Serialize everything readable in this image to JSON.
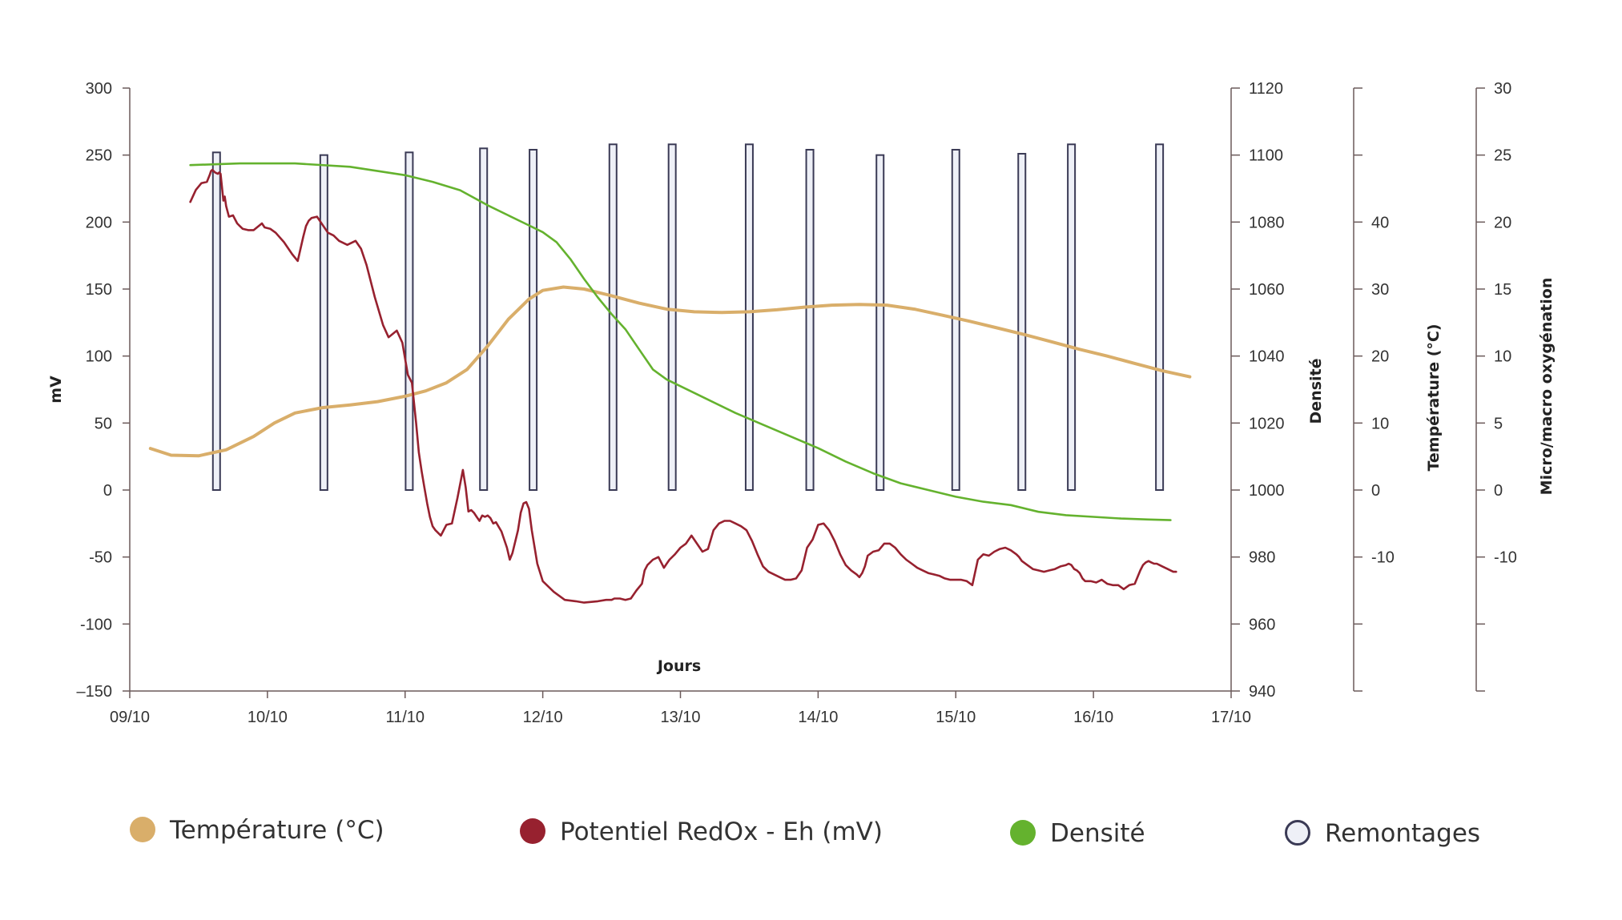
{
  "chart_data": {
    "type": "line",
    "title": "",
    "xlabel": "Jours",
    "x_ticks": [
      "09/10",
      "10/10",
      "11/10",
      "12/10",
      "13/10",
      "14/10",
      "15/10",
      "16/10",
      "17/10"
    ],
    "x_range": [
      0,
      8
    ],
    "axes": {
      "left": {
        "label": "mV",
        "ylim": [
          -150,
          300
        ],
        "ticks": [
          "300",
          "250",
          "200",
          "150",
          "100",
          "50",
          "0",
          "-50",
          "-100",
          "–150"
        ]
      },
      "right1": {
        "label": "Densité",
        "ylim": [
          940,
          1120
        ],
        "ticks": [
          "1120",
          "1100",
          "1080",
          "1060",
          "1040",
          "1020",
          "1000",
          "980",
          "960",
          "940"
        ]
      },
      "right2": {
        "label": "Température (°C)",
        "ylim": [
          -30,
          60
        ],
        "ticks": [
          "40",
          "30",
          "20",
          "10",
          "0",
          "-10"
        ]
      },
      "right3": {
        "label": "Micro/macro oxygénation",
        "ylim": [
          -15,
          30
        ],
        "ticks": [
          "30",
          "25",
          "20",
          "15",
          "10",
          "5",
          "0",
          "-10"
        ]
      }
    },
    "colors": {
      "temperature": "#D9AE6A",
      "redox": "#97212F",
      "densite": "#64B22E",
      "remontages": "#3A3A55",
      "remontages_fill": "#EEF0F7",
      "axis": "#6B5A5A"
    },
    "series": [
      {
        "name": "Température (°C)",
        "axis": "right2",
        "x": [
          0.15,
          0.3,
          0.5,
          0.7,
          0.9,
          1.05,
          1.2,
          1.4,
          1.6,
          1.8,
          2.0,
          2.15,
          2.3,
          2.45,
          2.6,
          2.75,
          2.9,
          3.0,
          3.15,
          3.3,
          3.5,
          3.7,
          3.9,
          4.1,
          4.3,
          4.5,
          4.7,
          4.9,
          5.1,
          5.3,
          5.5,
          5.7,
          5.9,
          6.1,
          6.3,
          6.5,
          6.7,
          6.9,
          7.1,
          7.3,
          7.5,
          7.7
        ],
        "values": [
          6.2,
          5.2,
          5.1,
          6.0,
          8.0,
          10.0,
          11.5,
          12.3,
          12.7,
          13.2,
          14.0,
          14.8,
          16.0,
          18.0,
          21.5,
          25.5,
          28.5,
          29.8,
          30.3,
          30.0,
          29.0,
          27.9,
          27.0,
          26.6,
          26.5,
          26.6,
          26.9,
          27.3,
          27.6,
          27.7,
          27.6,
          27.0,
          26.1,
          25.2,
          24.2,
          23.2,
          22.1,
          21.0,
          20.0,
          18.9,
          17.8,
          16.9
        ]
      },
      {
        "name": "Potentiel RedOx - Eh (mV)",
        "axis": "left",
        "x": [
          0.44,
          0.48,
          0.52,
          0.56,
          0.58,
          0.59,
          0.6,
          0.62,
          0.64,
          0.65,
          0.66,
          0.68,
          0.69,
          0.7,
          0.72,
          0.75,
          0.78,
          0.8,
          0.82,
          0.86,
          0.9,
          0.96,
          0.98,
          1.02,
          1.06,
          1.12,
          1.18,
          1.22,
          1.26,
          1.28,
          1.3,
          1.32,
          1.36,
          1.4,
          1.44,
          1.48,
          1.52,
          1.58,
          1.64,
          1.68,
          1.72,
          1.78,
          1.84,
          1.88,
          1.94,
          1.98,
          2.02,
          2.05,
          2.08,
          2.1,
          2.12,
          2.14,
          2.16,
          2.18,
          2.2,
          2.22,
          2.26,
          2.3,
          2.34,
          2.38,
          2.42,
          2.44,
          2.46,
          2.48,
          2.5,
          2.52,
          2.54,
          2.56,
          2.58,
          2.6,
          2.62,
          2.64,
          2.66,
          2.7,
          2.74,
          2.76,
          2.78,
          2.82,
          2.84,
          2.86,
          2.88,
          2.9,
          2.92,
          2.96,
          3.0,
          3.08,
          3.16,
          3.24,
          3.3,
          3.4,
          3.46,
          3.5,
          3.52,
          3.56,
          3.6,
          3.64,
          3.68,
          3.72,
          3.74,
          3.76,
          3.8,
          3.84,
          3.88,
          3.9,
          3.92,
          3.96,
          4.0,
          4.04,
          4.08,
          4.12,
          4.16,
          4.2,
          4.24,
          4.28,
          4.32,
          4.36,
          4.4,
          4.44,
          4.48,
          4.52,
          4.56,
          4.6,
          4.64,
          4.68,
          4.72,
          4.76,
          4.8,
          4.84,
          4.88,
          4.92,
          4.96,
          5.0,
          5.04,
          5.08,
          5.12,
          5.16,
          5.2,
          5.24,
          5.28,
          5.3,
          5.32,
          5.34,
          5.36,
          5.4,
          5.44,
          5.48,
          5.52,
          5.56,
          5.6,
          5.64,
          5.68,
          5.72,
          5.76,
          5.8,
          5.84,
          5.88,
          5.92,
          5.96,
          6.0,
          6.04,
          6.08,
          6.12,
          6.16,
          6.2,
          6.24,
          6.28,
          6.32,
          6.36,
          6.4,
          6.44,
          6.46,
          6.48,
          6.52,
          6.56,
          6.6,
          6.64,
          6.68,
          6.72,
          6.76,
          6.8,
          6.82,
          6.84,
          6.86,
          6.88,
          6.9,
          6.92,
          6.94,
          6.98,
          7.02,
          7.06,
          7.1,
          7.14,
          7.18,
          7.22,
          7.26,
          7.3,
          7.34,
          7.36,
          7.38,
          7.4,
          7.42,
          7.44,
          7.46,
          7.48,
          7.5,
          7.52,
          7.54,
          7.56,
          7.58,
          7.6
        ],
        "values": [
          215,
          224,
          229,
          230,
          235,
          238,
          239,
          237,
          236,
          237,
          236,
          216,
          219,
          212,
          204,
          205,
          199,
          197,
          195,
          194,
          194,
          199,
          196,
          195,
          192,
          185,
          176,
          171,
          189,
          197,
          201,
          203,
          204,
          198,
          192,
          190,
          186,
          183,
          186,
          180,
          168,
          144,
          123,
          114,
          119,
          110,
          86,
          80,
          50,
          28,
          14,
          2,
          -10,
          -20,
          -27,
          -30,
          -34,
          -26,
          -25,
          -6,
          15,
          2,
          -16,
          -15,
          -17,
          -20,
          -23,
          -19,
          -20,
          -19,
          -21,
          -25,
          -24,
          -31,
          -43,
          -52,
          -47,
          -30,
          -17,
          -10,
          -9,
          -14,
          -30,
          -55,
          -68,
          -76,
          -82,
          -83,
          -84,
          -83,
          -82,
          -82,
          -81,
          -81,
          -82,
          -81,
          -75,
          -70,
          -60,
          -56,
          -52,
          -50,
          -58,
          -55,
          -52,
          -48,
          -43,
          -40,
          -34,
          -40,
          -46,
          -44,
          -30,
          -25,
          -23,
          -23,
          -25,
          -27,
          -30,
          -38,
          -48,
          -57,
          -61,
          -63,
          -65,
          -67,
          -67,
          -66,
          -60,
          -43,
          -37,
          -26,
          -25,
          -30,
          -38,
          -48,
          -56,
          -60,
          -63,
          -65,
          -62,
          -57,
          -49,
          -46,
          -45,
          -40,
          -40,
          -43,
          -48,
          -52,
          -55,
          -58,
          -60,
          -62,
          -63,
          -64,
          -66,
          -67,
          -67,
          -67,
          -68,
          -71,
          -52,
          -48,
          -49,
          -46,
          -44,
          -43,
          -45,
          -48,
          -50,
          -53,
          -56,
          -59,
          -60,
          -61,
          -60,
          -59,
          -57,
          -56,
          -55,
          -56,
          -59,
          -60,
          -62,
          -66,
          -68,
          -68,
          -69,
          -67,
          -70,
          -71,
          -71,
          -74,
          -71,
          -70,
          -60,
          -56,
          -54,
          -53,
          -54,
          -55,
          -55,
          -56,
          -57,
          -58,
          -59,
          -60,
          -61,
          -61
        ]
      },
      {
        "name": "Densité",
        "axis": "right1",
        "x": [
          0.44,
          0.8,
          1.2,
          1.6,
          2.0,
          2.2,
          2.4,
          2.6,
          2.75,
          2.9,
          3.0,
          3.1,
          3.2,
          3.3,
          3.4,
          3.5,
          3.6,
          3.7,
          3.8,
          3.9,
          4.0,
          4.2,
          4.4,
          4.6,
          4.8,
          5.0,
          5.2,
          5.4,
          5.6,
          5.8,
          6.0,
          6.2,
          6.4,
          6.6,
          6.8,
          7.0,
          7.2,
          7.4,
          7.56
        ],
        "values": [
          1097,
          1097.5,
          1097.5,
          1096.5,
          1094,
          1092,
          1089.5,
          1085,
          1082,
          1079,
          1077,
          1074,
          1069,
          1063,
          1057.5,
          1052.5,
          1048,
          1042,
          1036,
          1033,
          1031,
          1027,
          1023,
          1019.5,
          1016,
          1012.5,
          1008.5,
          1005,
          1002,
          1000,
          998,
          996.5,
          995.5,
          993.5,
          992.5,
          992,
          991.5,
          991.2,
          991
        ]
      }
    ],
    "remontages": {
      "name": "Remontages",
      "axis": "right3",
      "x": [
        0.63,
        1.41,
        2.03,
        2.57,
        2.93,
        3.51,
        3.94,
        4.5,
        4.94,
        5.45,
        6.0,
        6.48,
        6.84,
        7.48
      ],
      "values": [
        25.2,
        25.0,
        25.2,
        25.5,
        25.4,
        25.8,
        25.8,
        25.8,
        25.4,
        25.0,
        25.4,
        25.1,
        25.8,
        25.8
      ]
    },
    "legend": [
      {
        "label": "Température (°C)",
        "color": "#D9AE6A",
        "kind": "filled"
      },
      {
        "label": "Potentiel RedOx - Eh (mV)",
        "color": "#97212F",
        "kind": "filled"
      },
      {
        "label": "Densité",
        "color": "#64B22E",
        "kind": "filled"
      },
      {
        "label": "Remontages",
        "color": "#3A3A55",
        "kind": "hollow"
      }
    ],
    "legend_position": "bottom"
  }
}
